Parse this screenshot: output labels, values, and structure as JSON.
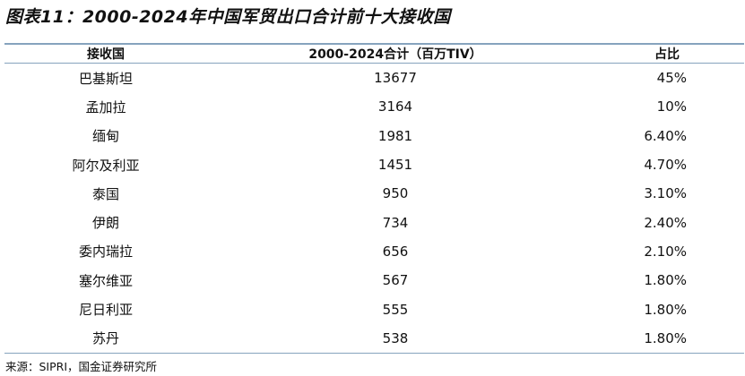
{
  "title": "图表11：2000-2024年中国军贸出口合计前十大接收国",
  "table": {
    "headers": [
      "接收国",
      "2000-2024合计（百万TIV）",
      "占比"
    ],
    "rows": [
      [
        "巴基斯坦",
        "13677",
        "45%"
      ],
      [
        "孟加拉",
        "3164",
        "10%"
      ],
      [
        "缅甸",
        "1981",
        "6.40%"
      ],
      [
        "阿尔及利亚",
        "1451",
        "4.70%"
      ],
      [
        "泰国",
        "950",
        "3.10%"
      ],
      [
        "伊朗",
        "734",
        "2.40%"
      ],
      [
        "委内瑞拉",
        "656",
        "2.10%"
      ],
      [
        "塞尔维亚",
        "567",
        "1.80%"
      ],
      [
        "尼日利亚",
        "555",
        "1.80%"
      ],
      [
        "苏丹",
        "538",
        "1.80%"
      ]
    ]
  },
  "source": "来源：SIPRI，国金证券研究所",
  "colors": {
    "rule": "#86a3bd"
  }
}
